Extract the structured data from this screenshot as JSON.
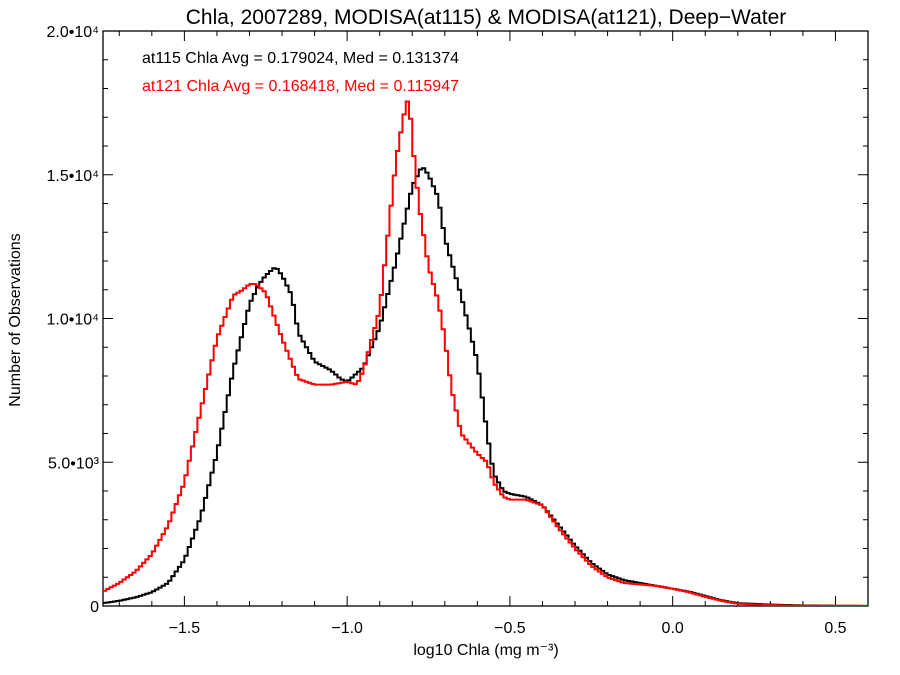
{
  "chart_data": {
    "type": "line",
    "title": "Chla, 2007289, MODISA(at115) & MODISA(at121), Deep−Water",
    "xlabel": "log10 Chla (mg m⁻³)",
    "ylabel": "Number of Observations",
    "xlim": [
      -1.75,
      0.6
    ],
    "ylim": [
      0,
      20000
    ],
    "grid": false,
    "x_ticks": [
      {
        "value": -1.5,
        "label": "−1.5"
      },
      {
        "value": -1.0,
        "label": "−1.0"
      },
      {
        "value": -0.5,
        "label": "−0.5"
      },
      {
        "value": 0.0,
        "label": "0.0"
      },
      {
        "value": 0.5,
        "label": "0.5"
      }
    ],
    "y_ticks": [
      {
        "value": 0,
        "label": "0"
      },
      {
        "value": 5000,
        "label": "5.0•10³"
      },
      {
        "value": 10000,
        "label": "1.0•10⁴"
      },
      {
        "value": 15000,
        "label": "1.5•10⁴"
      },
      {
        "value": 20000,
        "label": "2.0•10⁴"
      }
    ],
    "annotations": [
      {
        "text": "at115 Chla Avg = 0.179024, Med = 0.131374",
        "color": "#000000"
      },
      {
        "text": "at121 Chla Avg = 0.168418, Med = 0.115947",
        "color": "#ff0000"
      }
    ],
    "series": [
      {
        "color": "#000000",
        "x": [
          -1.75,
          -1.7,
          -1.65,
          -1.6,
          -1.55,
          -1.5,
          -1.45,
          -1.4,
          -1.35,
          -1.3,
          -1.27,
          -1.25,
          -1.22,
          -1.2,
          -1.17,
          -1.15,
          -1.1,
          -1.05,
          -1.02,
          -1.0,
          -0.95,
          -0.9,
          -0.85,
          -0.8,
          -0.77,
          -0.75,
          -0.72,
          -0.7,
          -0.65,
          -0.6,
          -0.57,
          -0.55,
          -0.52,
          -0.5,
          -0.45,
          -0.4,
          -0.35,
          -0.3,
          -0.25,
          -0.2,
          -0.15,
          -0.1,
          -0.05,
          0.0,
          0.05,
          0.1,
          0.15,
          0.2,
          0.3,
          0.4,
          0.5,
          0.6
        ],
        "y": [
          100,
          180,
          300,
          480,
          800,
          1600,
          3100,
          5300,
          8200,
          10500,
          11200,
          11500,
          11800,
          11500,
          10800,
          9500,
          8500,
          8200,
          7900,
          7800,
          8300,
          9700,
          12000,
          14600,
          15300,
          15000,
          14200,
          12800,
          10800,
          8500,
          6000,
          4600,
          4000,
          3900,
          3800,
          3500,
          2800,
          2100,
          1500,
          1100,
          900,
          800,
          700,
          600,
          500,
          350,
          200,
          100,
          50,
          20,
          10,
          5
        ]
      },
      {
        "color": "#ff0000",
        "x": [
          -1.75,
          -1.7,
          -1.65,
          -1.6,
          -1.55,
          -1.5,
          -1.45,
          -1.4,
          -1.35,
          -1.32,
          -1.3,
          -1.28,
          -1.25,
          -1.2,
          -1.15,
          -1.1,
          -1.05,
          -1.0,
          -0.97,
          -0.95,
          -0.9,
          -0.87,
          -0.85,
          -0.83,
          -0.82,
          -0.81,
          -0.8,
          -0.78,
          -0.75,
          -0.72,
          -0.7,
          -0.68,
          -0.65,
          -0.6,
          -0.57,
          -0.55,
          -0.52,
          -0.5,
          -0.45,
          -0.4,
          -0.35,
          -0.3,
          -0.25,
          -0.2,
          -0.15,
          -0.1,
          -0.05,
          0.0,
          0.05,
          0.1,
          0.15,
          0.2,
          0.3,
          0.4,
          0.5,
          0.6
        ],
        "y": [
          500,
          800,
          1200,
          1800,
          2800,
          4300,
          6800,
          9300,
          10800,
          11000,
          11200,
          11200,
          10900,
          9300,
          7900,
          7700,
          7700,
          7800,
          7700,
          8200,
          10300,
          13400,
          15500,
          16800,
          17400,
          17700,
          16200,
          14000,
          11800,
          10600,
          9300,
          7600,
          6000,
          5300,
          5000,
          4300,
          3800,
          3700,
          3700,
          3500,
          2700,
          2000,
          1400,
          1000,
          800,
          750,
          700,
          600,
          480,
          320,
          180,
          80,
          30,
          10,
          5,
          3
        ]
      }
    ]
  }
}
